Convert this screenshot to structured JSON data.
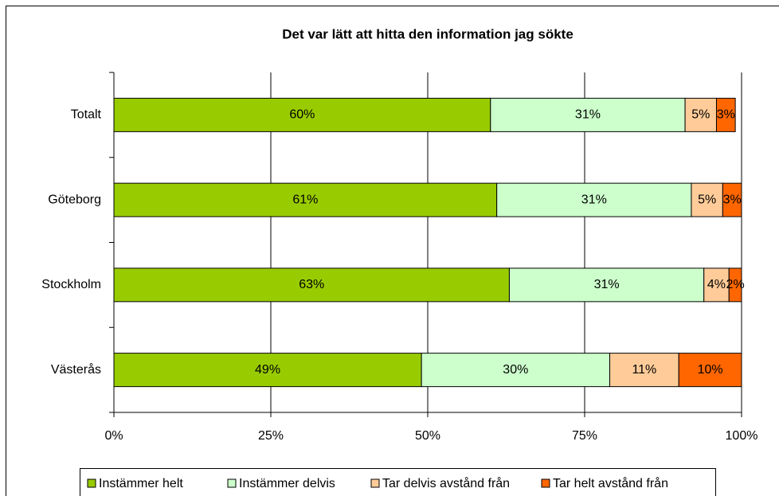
{
  "chart_data": {
    "type": "stacked-bar-horizontal",
    "title": "Det var lätt att hitta den information jag sökte",
    "categories": [
      "Totalt",
      "Göteborg",
      "Stockholm",
      "Västerås"
    ],
    "series": [
      {
        "name": "Instämmer helt",
        "color": "#99cc00",
        "values": [
          60,
          61,
          63,
          49
        ],
        "value_labels": [
          "60%",
          "61%",
          "63%",
          "49%"
        ]
      },
      {
        "name": "Instämmer delvis",
        "color": "#ccffcc",
        "values": [
          31,
          31,
          31,
          30
        ],
        "value_labels": [
          "31%",
          "31%",
          "31%",
          "30%"
        ]
      },
      {
        "name": "Tar delvis avstånd från",
        "color": "#ffcc99",
        "values": [
          5,
          5,
          4,
          11
        ],
        "value_labels": [
          "5%",
          "5%",
          "4%",
          "11%"
        ]
      },
      {
        "name": "Tar helt avstånd från",
        "color": "#ff6600",
        "values": [
          3,
          3,
          2,
          10
        ],
        "value_labels": [
          "3%",
          "3%",
          "2%",
          "10%"
        ]
      }
    ],
    "xlim": [
      0,
      100
    ],
    "xticks": [
      {
        "value": 0,
        "label": "0%"
      },
      {
        "value": 25,
        "label": "25%"
      },
      {
        "value": 50,
        "label": "50%"
      },
      {
        "value": 75,
        "label": "75%"
      },
      {
        "value": 100,
        "label": "100%"
      }
    ],
    "grid": true,
    "legend": "bottom"
  }
}
